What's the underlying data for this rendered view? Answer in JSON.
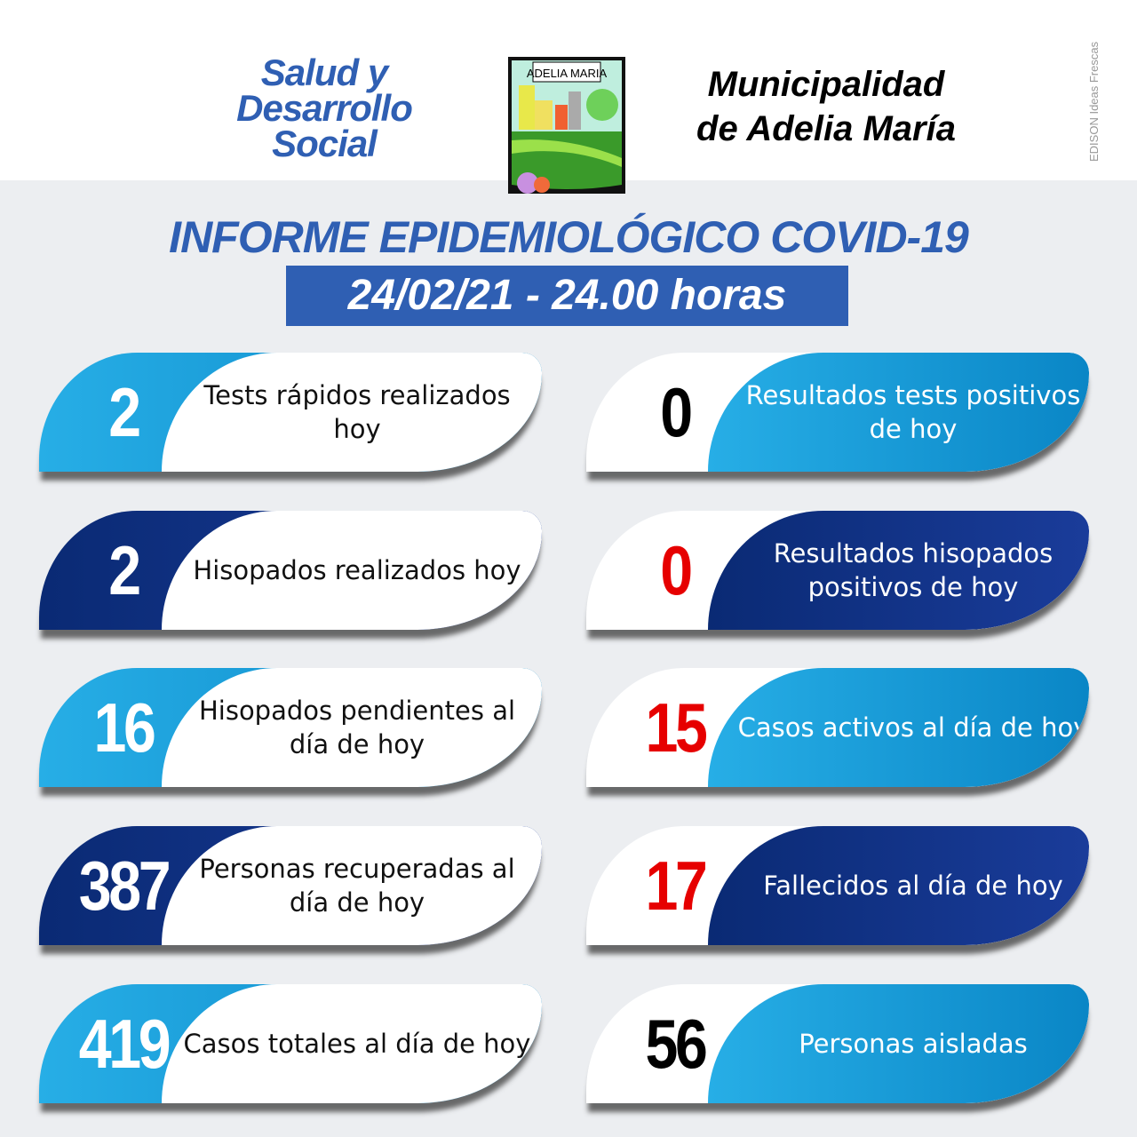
{
  "header": {
    "left_title": "Salud y Desarrollo Social",
    "right_title_line1": "Municipalidad",
    "right_title_line2": "de Adelia María",
    "logo_text": "ADELIA MARIA",
    "watermark": "EDISON Ideas Frescas"
  },
  "report": {
    "title": "INFORME EPIDEMIOLÓGICO COVID-19",
    "date": "24/02/21 - 24.00 horas"
  },
  "colors": {
    "light_blue": "#1aa6e0",
    "dark_blue": "#0b2a78",
    "title_blue": "#2f5fb3",
    "red": "#e60000"
  },
  "left_cards": [
    {
      "value": "2",
      "label": "Tests rápidos realizados hoy",
      "style": "light"
    },
    {
      "value": "2",
      "label": "Hisopados realizados hoy",
      "style": "dark"
    },
    {
      "value": "16",
      "label": "Hisopados pendientes al día de hoy",
      "style": "light"
    },
    {
      "value": "387",
      "label": "Personas recuperadas al día de hoy",
      "style": "dark"
    },
    {
      "value": "419",
      "label": "Casos totales al día de hoy",
      "style": "light"
    }
  ],
  "right_cards": [
    {
      "value": "0",
      "label": "Resultados tests positivos de hoy",
      "style": "light",
      "value_color": "black"
    },
    {
      "value": "0",
      "label": "Resultados hisopados positivos de hoy",
      "style": "dark",
      "value_color": "red"
    },
    {
      "value": "15",
      "label": "Casos activos al día de hoy",
      "style": "light",
      "value_color": "red"
    },
    {
      "value": "17",
      "label": "Fallecidos al día de hoy",
      "style": "dark",
      "value_color": "red"
    },
    {
      "value": "56",
      "label": "Personas aisladas",
      "style": "light",
      "value_color": "black"
    }
  ]
}
